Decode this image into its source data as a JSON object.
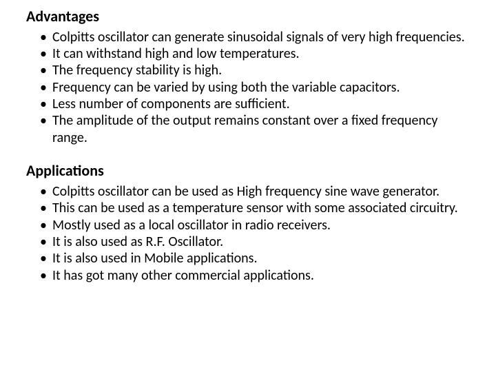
{
  "text_color": "#000000",
  "background_color": "#ffffff",
  "heading_fontsize": 22,
  "body_fontsize": 20,
  "sections": [
    {
      "heading": "Advantages",
      "items": [
        "Colpitts oscillator can generate sinusoidal signals of very high frequencies.",
        "It can withstand high and low temperatures.",
        "The frequency stability is high.",
        "Frequency can be varied by using both the variable capacitors.",
        "Less number of components are sufficient.",
        "The amplitude of the output remains constant over a fixed frequency range."
      ]
    },
    {
      "heading": "Applications",
      "items": [
        "Colpitts oscillator can be used as High frequency sine wave generator.",
        "This can be used as a temperature sensor with some associated circuitry.",
        "Mostly used as a local oscillator in radio receivers.",
        "It is also used as R.F. Oscillator.",
        "It is also used in Mobile applications.",
        "It has got many other commercial applications."
      ]
    }
  ]
}
